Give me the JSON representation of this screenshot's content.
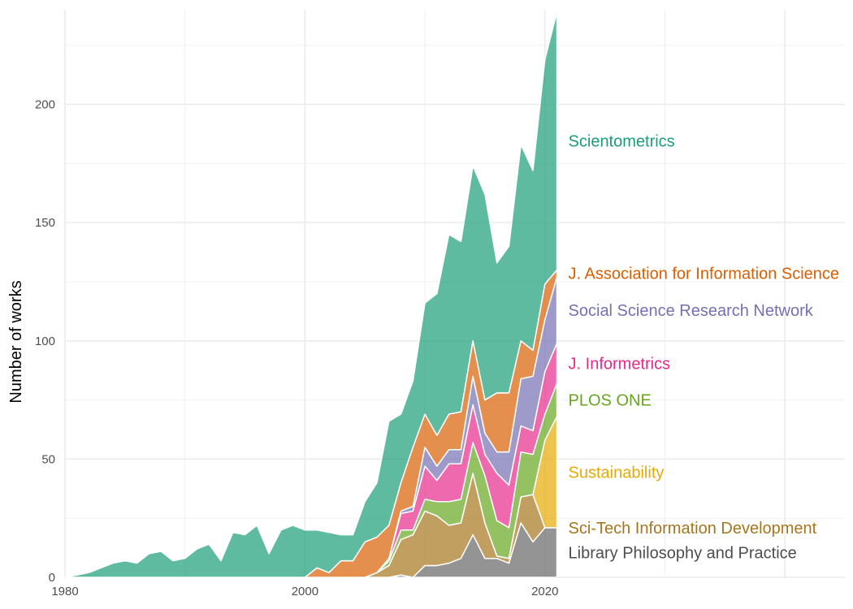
{
  "chart_data": {
    "type": "area",
    "stacked": true,
    "title": "",
    "xlabel": "",
    "ylabel": "Number of works",
    "xlim": [
      1980,
      2045
    ],
    "ylim": [
      0,
      240
    ],
    "x_ticks": [
      1980,
      2000,
      2020
    ],
    "y_ticks": [
      0,
      50,
      100,
      150,
      200
    ],
    "grid": true,
    "legend": "direct labels at right end of series",
    "x": [
      1980,
      1981,
      1982,
      1983,
      1984,
      1985,
      1986,
      1987,
      1988,
      1989,
      1990,
      1991,
      1992,
      1993,
      1994,
      1995,
      1996,
      1997,
      1998,
      1999,
      2000,
      2001,
      2002,
      2003,
      2004,
      2005,
      2006,
      2007,
      2008,
      2009,
      2010,
      2011,
      2012,
      2013,
      2014,
      2015,
      2016,
      2017,
      2018,
      2019,
      2020,
      2021
    ],
    "series": [
      {
        "name": "Library Philosophy and Practice",
        "color": "#666666",
        "values": [
          0,
          0,
          0,
          0,
          0,
          0,
          0,
          0,
          0,
          0,
          0,
          0,
          0,
          0,
          0,
          0,
          0,
          0,
          0,
          0,
          0,
          0,
          0,
          0,
          0,
          0,
          0,
          0,
          1,
          0,
          5,
          5,
          6,
          8,
          18,
          8,
          8,
          6,
          23,
          15,
          21,
          21
        ]
      },
      {
        "name": "Sci-Tech Information Development",
        "color": "#A6761D",
        "values": [
          0,
          0,
          0,
          0,
          0,
          0,
          0,
          0,
          0,
          0,
          0,
          0,
          0,
          0,
          0,
          0,
          0,
          0,
          0,
          0,
          0,
          0,
          0,
          0,
          0,
          0,
          2,
          5,
          15,
          18,
          23,
          21,
          16,
          15,
          26,
          15,
          1,
          2,
          11,
          20,
          0,
          0
        ]
      },
      {
        "name": "Sustainability",
        "color": "#E6AB02",
        "values": [
          0,
          0,
          0,
          0,
          0,
          0,
          0,
          0,
          0,
          0,
          0,
          0,
          0,
          0,
          0,
          0,
          0,
          0,
          0,
          0,
          0,
          0,
          0,
          0,
          0,
          0,
          0,
          0,
          0,
          0,
          0,
          0,
          0,
          0,
          0,
          0,
          0,
          0,
          0,
          0,
          37,
          47
        ]
      },
      {
        "name": "PLOS ONE",
        "color": "#66A61E",
        "values": [
          0,
          0,
          0,
          0,
          0,
          0,
          0,
          0,
          0,
          0,
          0,
          0,
          0,
          0,
          0,
          0,
          0,
          0,
          0,
          0,
          0,
          0,
          0,
          0,
          0,
          0,
          0,
          2,
          4,
          2,
          5,
          6,
          10,
          10,
          13,
          20,
          15,
          13,
          19,
          17,
          11,
          14
        ]
      },
      {
        "name": "J. Informetrics",
        "color": "#E7298A",
        "values": [
          0,
          0,
          0,
          0,
          0,
          0,
          0,
          0,
          0,
          0,
          0,
          0,
          0,
          0,
          0,
          0,
          0,
          0,
          0,
          0,
          0,
          0,
          0,
          0,
          0,
          0,
          0,
          1,
          7,
          8,
          14,
          9,
          16,
          15,
          16,
          9,
          20,
          18,
          11,
          10,
          18,
          17
        ]
      },
      {
        "name": "Social Science Research Network",
        "color": "#7570B3",
        "values": [
          0,
          0,
          0,
          0,
          0,
          0,
          0,
          0,
          0,
          0,
          0,
          0,
          0,
          0,
          0,
          0,
          0,
          0,
          0,
          0,
          0,
          0,
          0,
          0,
          0,
          0,
          0,
          0,
          1,
          2,
          8,
          6,
          6,
          6,
          12,
          9,
          9,
          14,
          20,
          23,
          22,
          28
        ]
      },
      {
        "name": "J. Association for Information Science",
        "color": "#D95F02",
        "values": [
          0,
          0,
          0,
          0,
          0,
          0,
          0,
          0,
          0,
          0,
          0,
          0,
          0,
          0,
          0,
          0,
          0,
          0,
          0,
          0,
          0,
          4,
          2,
          7,
          7,
          15,
          15,
          14,
          12,
          25,
          14,
          13,
          15,
          16,
          15,
          14,
          25,
          25,
          16,
          11,
          15,
          3
        ]
      },
      {
        "name": "Scientometrics",
        "color": "#1B9E77",
        "values": [
          0,
          1,
          2,
          4,
          6,
          7,
          6,
          10,
          11,
          7,
          8,
          12,
          14,
          7,
          19,
          18,
          22,
          10,
          20,
          22,
          20,
          16,
          17,
          11,
          11,
          17,
          23,
          44,
          29,
          28,
          47,
          60,
          76,
          72,
          74,
          87,
          55,
          62,
          83,
          76,
          95,
          109
        ]
      }
    ]
  }
}
